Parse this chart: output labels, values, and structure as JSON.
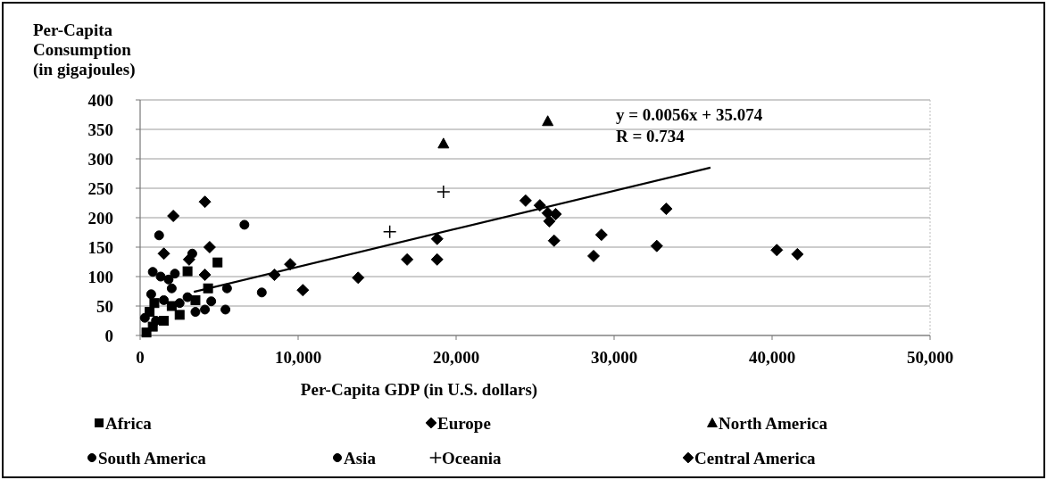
{
  "chart_data": {
    "type": "scatter",
    "xlabel": "Per-Capita GDP (in U.S. dollars)",
    "ylabel": "Per-Capita Consumption (in gigajoules)",
    "xlim": [
      0,
      50000
    ],
    "xticks": [
      {
        "value": 0,
        "label": "0"
      },
      {
        "value": 10000,
        "label": "10,000"
      },
      {
        "value": 20000,
        "label": "20,000"
      },
      {
        "value": 30000,
        "label": "30,000"
      },
      {
        "value": 40000,
        "label": "40,000"
      },
      {
        "value": 50000,
        "label": "50,000"
      }
    ],
    "ylim": [
      0,
      400
    ],
    "yticks": [
      0,
      50,
      100,
      150,
      200,
      250,
      300,
      350,
      400
    ],
    "grid": "y",
    "legend": "bottom",
    "annotations": [
      "y = 0.0056x + 35.074",
      "R = 0.734"
    ],
    "series": [
      {
        "name": "Africa",
        "color": "#000000",
        "marker": "square",
        "x": [
          4900,
          3000,
          800,
          600,
          2000,
          3500,
          1500,
          400,
          2500,
          900,
          4300
        ],
        "values": [
          124,
          109,
          15,
          40,
          50,
          60,
          25,
          5,
          35,
          55,
          80
        ]
      },
      {
        "name": "Europe",
        "color": "#000000",
        "marker": "diamond",
        "x": [
          24400,
          25300,
          25800,
          26300,
          25900,
          26200,
          29200,
          28700,
          33300,
          32700,
          40300,
          41600,
          18800,
          18800,
          16900,
          13800,
          10300,
          9500,
          8500,
          2100,
          1500,
          4400,
          4100,
          3100
        ],
        "values": [
          229,
          221,
          208,
          206,
          194,
          161,
          171,
          135,
          215,
          152,
          145,
          138,
          164,
          129,
          129,
          98,
          77,
          121,
          103,
          203,
          139,
          150,
          103,
          129
        ]
      },
      {
        "name": "North America",
        "color": "#000000",
        "marker": "triangle",
        "x": [
          19200,
          25800
        ],
        "values": [
          326,
          364
        ]
      },
      {
        "name": "South America",
        "color": "#000000",
        "marker": "circle",
        "x": [
          3300,
          7700,
          4500,
          4100,
          5400
        ],
        "values": [
          139,
          73,
          58,
          44,
          44
        ]
      },
      {
        "name": "Asia",
        "color": "#000000",
        "marker": "circle",
        "x": [
          1200,
          6600,
          1000,
          700,
          1500,
          2000,
          300,
          1300,
          2200,
          3500,
          800,
          2500,
          1800,
          3000,
          5500
        ],
        "values": [
          170,
          188,
          25,
          70,
          60,
          80,
          30,
          100,
          105,
          40,
          108,
          55,
          95,
          65,
          80
        ]
      },
      {
        "name": "Oceania",
        "color": "#000000",
        "marker": "cross",
        "x": [
          19200,
          15800
        ],
        "values": [
          244,
          176
        ]
      },
      {
        "name": "Central America",
        "color": "#000000",
        "marker": "diamond",
        "x": [
          4100
        ],
        "values": [
          227
        ]
      },
      {
        "type": "line",
        "color": "#000000",
        "marker": "none",
        "x": [
          3400,
          36100
        ],
        "values": [
          74,
          285
        ]
      }
    ]
  }
}
